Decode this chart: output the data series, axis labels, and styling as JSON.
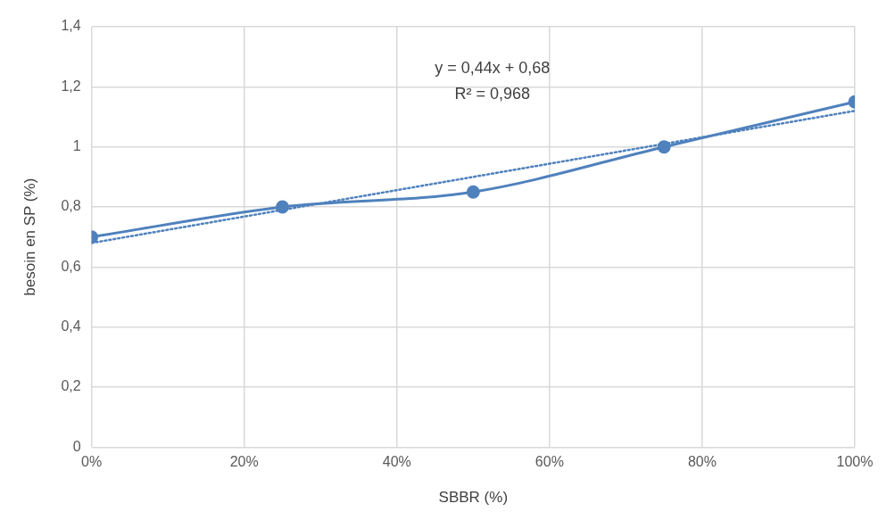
{
  "chart_data": {
    "type": "line",
    "xlabel": "SBBR (%)",
    "ylabel": "besoin en SP (%)",
    "xlim": [
      0,
      1
    ],
    "xticks": [
      {
        "value": 0,
        "label": "0%"
      },
      {
        "value": 0.2,
        "label": "20%"
      },
      {
        "value": 0.4,
        "label": "40%"
      },
      {
        "value": 0.6,
        "label": "60%"
      },
      {
        "value": 0.8,
        "label": "80%"
      },
      {
        "value": 1,
        "label": "100%"
      }
    ],
    "ylim": [
      0,
      1.4
    ],
    "yticks": [
      0,
      {
        "value": 0.2,
        "label": "0,2"
      },
      {
        "value": 0.4,
        "label": "0,4"
      },
      {
        "value": 0.6,
        "label": "0,6"
      },
      {
        "value": 0.8,
        "label": "0,8"
      },
      1,
      {
        "value": 1.2,
        "label": "1,2"
      },
      {
        "value": 1.4,
        "label": "1,4"
      }
    ],
    "grid": true,
    "legend": false,
    "series": [
      {
        "color": "#4f81bd",
        "x": [
          0,
          0.25,
          0.5,
          0.75,
          1
        ],
        "values": [
          0.7,
          0.8,
          0.85,
          1.0,
          1.15
        ],
        "marker": "circle",
        "line_style": "solid"
      },
      {
        "type": "line",
        "color": "#4f81bd",
        "x": [
          0,
          1
        ],
        "values": [
          0.68,
          1.12
        ],
        "marker": "none",
        "line_style": "dotted"
      }
    ],
    "annotations": [
      "y = 0,44x + 0,68",
      "R² = 0,968"
    ]
  }
}
